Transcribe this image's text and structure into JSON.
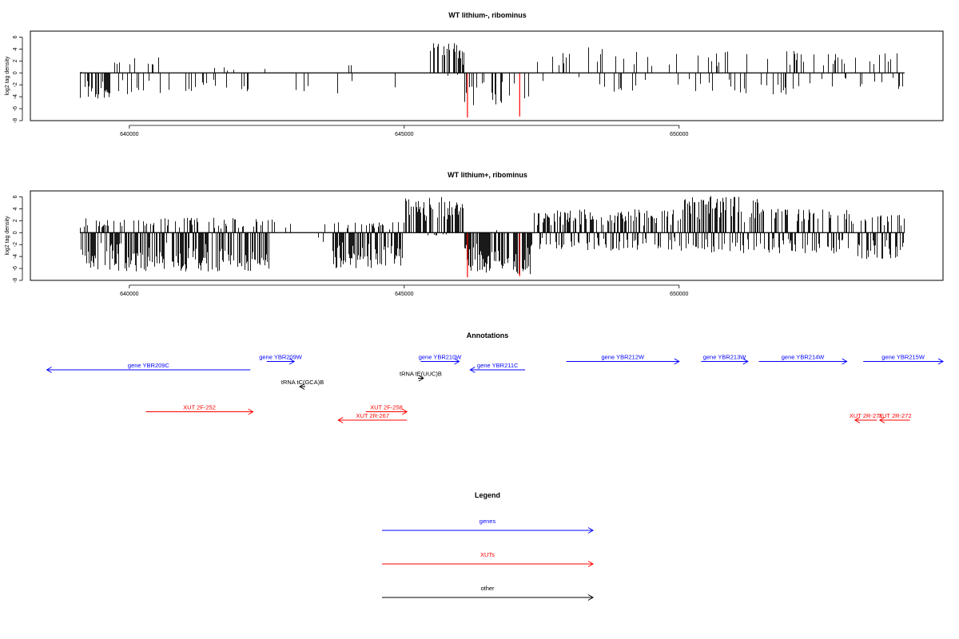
{
  "colors": {
    "genes": "#0000ff",
    "xuts": "#ff0000",
    "other": "#000000",
    "highlight": "#ff0000"
  },
  "chart_data": [
    {
      "type": "bar",
      "title": "WT lithium-, ribominus",
      "ylabel": "log2 tag density",
      "xlim": [
        638200,
        654800
      ],
      "ylim": [
        -8,
        7
      ],
      "xticks": [
        640000,
        645000,
        650000
      ],
      "yticks": [
        -8,
        -6,
        -4,
        -2,
        0,
        2,
        4,
        6
      ],
      "baseline_range": [
        639100,
        654100
      ],
      "highlight_positions": [
        646150,
        647100
      ],
      "highlight_values": [
        -7.5,
        -7.3
      ],
      "regions": [
        {
          "start": 639100,
          "end": 639700,
          "density": 0.45,
          "pos_max": 0.5,
          "neg_max": 4.3
        },
        {
          "start": 639700,
          "end": 640600,
          "density": 0.3,
          "pos_max": 2.6,
          "neg_max": 3.6
        },
        {
          "start": 640600,
          "end": 642500,
          "density": 0.12,
          "pos_max": 1.0,
          "neg_max": 3.2
        },
        {
          "start": 642500,
          "end": 644200,
          "density": 0.05,
          "pos_max": 2.0,
          "neg_max": 3.5
        },
        {
          "start": 644200,
          "end": 644900,
          "density": 0.04,
          "pos_max": 0.5,
          "neg_max": 2.5
        },
        {
          "start": 644900,
          "end": 645500,
          "density": 0.08,
          "pos_max": 4.3,
          "neg_max": 0.5
        },
        {
          "start": 645500,
          "end": 646100,
          "density": 0.55,
          "pos_max": 5.0,
          "neg_max": 0.5
        },
        {
          "start": 646100,
          "end": 647300,
          "density": 0.2,
          "pos_max": 0.5,
          "neg_max": 5.5
        },
        {
          "start": 647300,
          "end": 648300,
          "density": 0.15,
          "pos_max": 3.6,
          "neg_max": 1.5
        },
        {
          "start": 648300,
          "end": 650500,
          "density": 0.2,
          "pos_max": 4.6,
          "neg_max": 3.5
        },
        {
          "start": 650500,
          "end": 652300,
          "density": 0.3,
          "pos_max": 3.8,
          "neg_max": 3.7
        },
        {
          "start": 652300,
          "end": 654100,
          "density": 0.25,
          "pos_max": 3.4,
          "neg_max": 2.8
        }
      ]
    },
    {
      "type": "bar",
      "title": "WT lithium+, ribominus",
      "ylabel": "log2 tag density",
      "xlim": [
        638200,
        654800
      ],
      "ylim": [
        -8,
        7
      ],
      "xticks": [
        640000,
        645000,
        650000
      ],
      "yticks": [
        -8,
        -6,
        -4,
        -2,
        0,
        2,
        4,
        6
      ],
      "baseline_range": [
        639100,
        654100
      ],
      "highlight_positions": [
        646150,
        647100
      ],
      "highlight_values": [
        -7.5,
        -7.3
      ],
      "regions": [
        {
          "start": 639100,
          "end": 642600,
          "density": 0.85,
          "pos_max": 2.5,
          "neg_max": 6.5
        },
        {
          "start": 642600,
          "end": 643700,
          "density": 0.15,
          "pos_max": 2.5,
          "neg_max": 2.0
        },
        {
          "start": 643700,
          "end": 645000,
          "density": 0.8,
          "pos_max": 1.8,
          "neg_max": 6.0
        },
        {
          "start": 645000,
          "end": 646100,
          "density": 0.7,
          "pos_max": 6.0,
          "neg_max": 0.5
        },
        {
          "start": 646100,
          "end": 647300,
          "density": 0.75,
          "pos_max": 0.5,
          "neg_max": 7.0
        },
        {
          "start": 647300,
          "end": 650000,
          "density": 0.7,
          "pos_max": 4.0,
          "neg_max": 3.0
        },
        {
          "start": 650000,
          "end": 651600,
          "density": 0.85,
          "pos_max": 6.2,
          "neg_max": 3.5
        },
        {
          "start": 651600,
          "end": 653100,
          "density": 0.7,
          "pos_max": 4.0,
          "neg_max": 3.5
        },
        {
          "start": 653100,
          "end": 654100,
          "density": 0.6,
          "pos_max": 3.0,
          "neg_max": 4.5
        }
      ]
    }
  ],
  "annotations": {
    "title": "Annotations",
    "xlim": [
      638200,
      654800
    ],
    "features": [
      {
        "label": "gene YBR209C",
        "start": 642200,
        "end": 638500,
        "row": 2,
        "cat": "genes"
      },
      {
        "label": "gene YBR209W",
        "start": 642500,
        "end": 643000,
        "row": 1,
        "cat": "genes"
      },
      {
        "label": "gene YBR210W",
        "start": 645300,
        "end": 646000,
        "row": 1,
        "cat": "genes"
      },
      {
        "label": "gene YBR211C",
        "start": 647200,
        "end": 646200,
        "row": 2,
        "cat": "genes"
      },
      {
        "label": "gene YBR212W",
        "start": 647950,
        "end": 650000,
        "row": 1,
        "cat": "genes"
      },
      {
        "label": "gene YBR213W",
        "start": 650400,
        "end": 651250,
        "row": 1,
        "cat": "genes"
      },
      {
        "label": "gene YBR214W",
        "start": 651450,
        "end": 653050,
        "row": 1,
        "cat": "genes"
      },
      {
        "label": "gene YBR215W",
        "start": 653350,
        "end": 654800,
        "row": 1,
        "cat": "genes"
      },
      {
        "label": "tRNA tC(GCA)B",
        "start": 643200,
        "end": 643100,
        "row": 4,
        "cat": "other"
      },
      {
        "label": "tRNA tE(UUC)B",
        "start": 645250,
        "end": 645350,
        "row": 3,
        "cat": "other"
      },
      {
        "label": "XUT 2F-252",
        "start": 640300,
        "end": 642250,
        "row": 7,
        "cat": "xuts"
      },
      {
        "label": "XUT 2F-258",
        "start": 644300,
        "end": 645050,
        "row": 7,
        "cat": "xuts"
      },
      {
        "label": "XUT 2R-267",
        "start": 645050,
        "end": 643800,
        "row": 8,
        "cat": "xuts"
      },
      {
        "label": "XUT 2R-271",
        "start": 653600,
        "end": 653200,
        "row": 8,
        "cat": "xuts"
      },
      {
        "label": "XUT 2R-272",
        "start": 654200,
        "end": 653650,
        "row": 8,
        "cat": "xuts"
      }
    ]
  },
  "legend": {
    "title": "Legend",
    "items": [
      {
        "label": "genes",
        "cat": "genes"
      },
      {
        "label": "XUTs",
        "cat": "xuts"
      },
      {
        "label": "other",
        "cat": "other"
      }
    ]
  }
}
